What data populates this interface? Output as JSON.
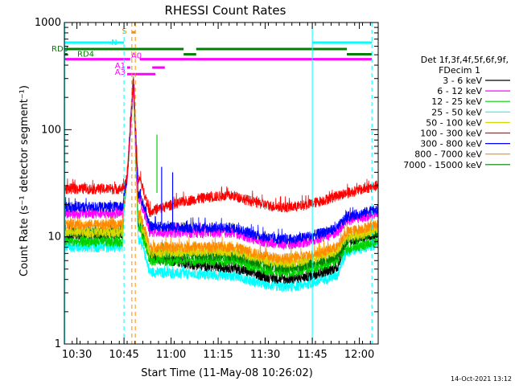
{
  "chart_data": {
    "type": "line",
    "title": "RHESSI Count Rates",
    "xlabel": "Start Time (11-May-08 10:26:02)",
    "ylabel": "Count Rate (s⁻¹ detector segment⁻¹)",
    "yscale": "log",
    "ylim": [
      1,
      1000
    ],
    "xlim_minutes": [
      26,
      126
    ],
    "x_ticks": [
      {
        "t": 30,
        "label": "10:30"
      },
      {
        "t": 45,
        "label": "10:45"
      },
      {
        "t": 60,
        "label": "11:00"
      },
      {
        "t": 75,
        "label": "11:15"
      },
      {
        "t": 90,
        "label": "11:30"
      },
      {
        "t": 105,
        "label": "11:45"
      },
      {
        "t": 120,
        "label": "12:00"
      }
    ],
    "y_ticks": [
      {
        "v": 1,
        "label": "1"
      },
      {
        "v": 10,
        "label": "10"
      },
      {
        "v": 100,
        "label": "100"
      },
      {
        "v": 1000,
        "label": "1000"
      }
    ],
    "legend_header": [
      "Det 1f,3f,4f,5f,6f,9f,",
      "FDecim 1"
    ],
    "legend_position": "right",
    "series": [
      {
        "name": "3 - 6 keV",
        "color": "#000000",
        "pre": 10.5,
        "post": 6.5,
        "mid": 4.5,
        "end": 10.5
      },
      {
        "name": "6 - 12 keV",
        "color": "#ff00ff",
        "pre": 16.5,
        "post": 11,
        "mid": 9.5,
        "end": 16.5
      },
      {
        "name": "12 - 25 keV",
        "color": "#00d000",
        "pre": 9,
        "post": 6,
        "mid": 5.2,
        "end": 9
      },
      {
        "name": "25 - 50 keV",
        "color": "#00ffff",
        "pre": 8,
        "post": 4.7,
        "mid": 3.8,
        "end": 8.5
      },
      {
        "name": "50 - 100 keV",
        "color": "#d8d800",
        "pre": 11,
        "post": 7,
        "mid": 6.4,
        "end": 11.5
      },
      {
        "name": "100 - 300 keV",
        "color": "#ff0000",
        "pre": 28,
        "post": 17,
        "mid": 21,
        "end": 30
      },
      {
        "name": "300 - 800 keV",
        "color": "#0000ff",
        "pre": 19,
        "post": 12.5,
        "mid": 10.5,
        "end": 18
      },
      {
        "name": "800 - 7000 keV",
        "color": "#ff8c00",
        "pre": 13,
        "post": 8,
        "mid": 7,
        "end": 13
      },
      {
        "name": "7000 - 15000 keV",
        "color": "#008000",
        "pre": 11,
        "post": 7,
        "mid": 5.8,
        "end": 11
      }
    ],
    "flare_peak": {
      "t": 48,
      "value": 300
    },
    "markers": [
      {
        "label": "S",
        "color": "#ff8c00",
        "t0": 47.5,
        "t1": 48.6,
        "level": 810
      },
      {
        "label": "N",
        "color": "#00ffff",
        "t0": 26,
        "t1": 45,
        "level": 650
      },
      {
        "label": "N",
        "color": "#00ffff",
        "t0": 105,
        "t1": 124,
        "level": 650
      },
      {
        "label": "RD0",
        "color": "#008000",
        "t0": 26,
        "t1": 64,
        "level": 565
      },
      {
        "label": "",
        "color": "#008000",
        "t0": 68,
        "t1": 116,
        "level": 565
      },
      {
        "label": "RD4",
        "color": "#008000",
        "t0": 26,
        "t1": 27,
        "level": 505
      },
      {
        "label": "",
        "color": "#008000",
        "t0": 64,
        "t1": 68,
        "level": 505
      },
      {
        "label": "",
        "color": "#008000",
        "t0": 116,
        "t1": 124,
        "level": 505
      },
      {
        "label": "A0",
        "color": "#ff00ff",
        "t0": 26,
        "t1": 47,
        "level": 455
      },
      {
        "label": "",
        "color": "#ff00ff",
        "t0": 50,
        "t1": 124,
        "level": 455
      },
      {
        "label": "A1",
        "color": "#ff00ff",
        "t0": 46,
        "t1": 47,
        "level": 380
      },
      {
        "label": "",
        "color": "#ff00ff",
        "t0": 54,
        "t1": 58,
        "level": 380
      },
      {
        "label": "A3",
        "color": "#ff00ff",
        "t0": 46,
        "t1": 55,
        "level": 330
      }
    ],
    "vlines": [
      {
        "t": 26.1,
        "color": "#00ffff",
        "dash": false
      },
      {
        "t": 45,
        "color": "#00ffff",
        "dash": true
      },
      {
        "t": 47.5,
        "color": "#ff8c00",
        "dash": true
      },
      {
        "t": 48.6,
        "color": "#ff8c00",
        "dash": true
      },
      {
        "t": 105,
        "color": "#00ffff",
        "dash": false
      },
      {
        "t": 124,
        "color": "#00ffff",
        "dash": true
      }
    ],
    "spikes": [
      {
        "t": 55.5,
        "value": 90,
        "color": "#00d000"
      },
      {
        "t": 57,
        "value": 45,
        "color": "#0000ff"
      },
      {
        "t": 60.5,
        "value": 40,
        "color": "#0000ff"
      }
    ],
    "timestamp": "14-Oct-2021 13:12"
  }
}
